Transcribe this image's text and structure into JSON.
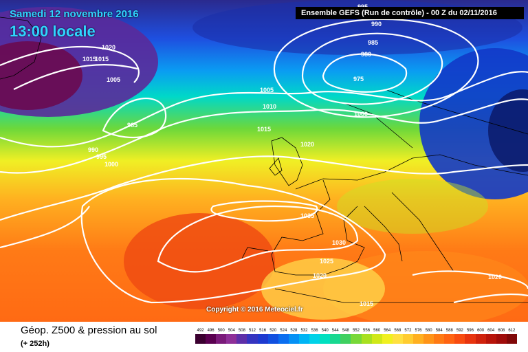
{
  "header": {
    "date": "Samedi 12 novembre 2016",
    "time": "13:00 locale",
    "run_info": "Ensemble GEFS  (Run de contrôle)  -  00 Z du 02/11/2016"
  },
  "footer": {
    "field": "Géop. Z500 & pression au sol",
    "lead_time": "(+ 252h)",
    "copyright": "Copyright © 2016 Meteociel.fr"
  },
  "isobar_labels": [
    "1020",
    "1015",
    "1015",
    "1005",
    "985",
    "990",
    "995",
    "1000",
    "1005",
    "1010",
    "1015",
    "1020",
    "990",
    "985",
    "980",
    "975",
    "1000",
    "1035",
    "1030",
    "1025",
    "1020",
    "1015",
    "1020",
    "995"
  ],
  "scale_ticks": [
    "492",
    "496",
    "500",
    "504",
    "508",
    "512",
    "516",
    "520",
    "524",
    "528",
    "532",
    "536",
    "540",
    "544",
    "548",
    "552",
    "556",
    "560",
    "564",
    "568",
    "572",
    "576",
    "580",
    "584",
    "588",
    "592",
    "596",
    "600",
    "604",
    "608",
    "612"
  ],
  "scale_colors": [
    "#3b0030",
    "#5a0050",
    "#7a1a7a",
    "#8e2f98",
    "#5e2fa8",
    "#3534c0",
    "#1d3ad0",
    "#1150e0",
    "#0a6ef0",
    "#0591f5",
    "#00b5f5",
    "#00d2e8",
    "#00e0c0",
    "#18d890",
    "#3fd060",
    "#78d838",
    "#a8e020",
    "#d0e818",
    "#f0f020",
    "#ffe040",
    "#ffcc30",
    "#ffb020",
    "#ff9418",
    "#ff7a14",
    "#ff6412",
    "#f84c10",
    "#e8340e",
    "#d0220c",
    "#b8140a",
    "#a00c0a",
    "#800808"
  ]
}
